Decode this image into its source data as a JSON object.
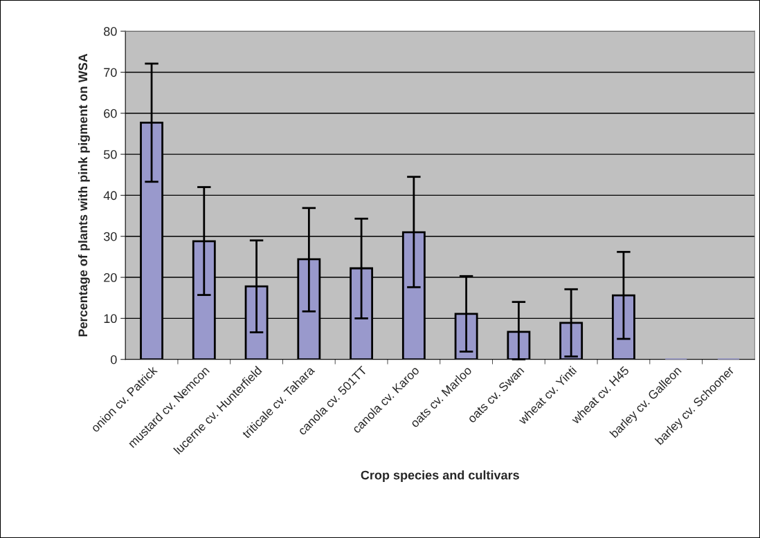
{
  "chart_data": {
    "type": "bar",
    "xlabel": "Crop species and cultivars",
    "ylabel": "Percentage of plants with pink pigment on WSA",
    "categories": [
      "onion cv. Patrick",
      "mustard cv. Nemcon",
      "lucerne cv. Hunterfield",
      "triticale cv. Tahara",
      "canola cv. 501TT",
      "canola cv. Karoo",
      "oats cv. Marloo",
      "oats cv. Swan",
      "wheat cv. Yinti",
      "wheat cv. H45",
      "barley cv. Galleon",
      "barley cv. Schooner"
    ],
    "values": [
      57.7,
      28.8,
      17.8,
      24.4,
      22.2,
      31.0,
      11.1,
      6.7,
      8.9,
      15.6,
      0,
      0
    ],
    "errors": [
      [
        43.3,
        72.1
      ],
      [
        15.7,
        42.0
      ],
      [
        6.6,
        29.0
      ],
      [
        11.7,
        36.9
      ],
      [
        10.0,
        34.3
      ],
      [
        17.6,
        44.5
      ],
      [
        1.9,
        20.3
      ],
      [
        0,
        14.0
      ],
      [
        0.7,
        17.1
      ],
      [
        5.0,
        26.2
      ],
      null,
      null
    ],
    "color": "#9999cc",
    "ylim": [
      0,
      80
    ],
    "yticks": [
      0,
      10,
      20,
      30,
      40,
      50,
      60,
      70,
      80
    ],
    "grid": "y",
    "legend": false
  }
}
